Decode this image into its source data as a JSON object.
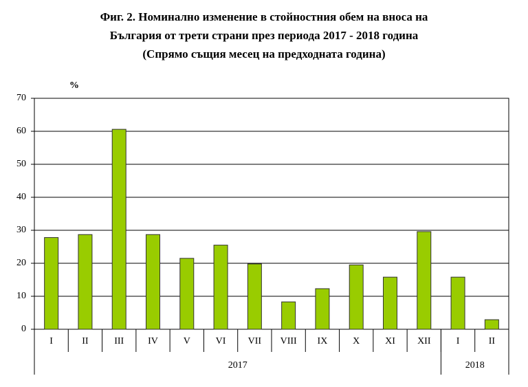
{
  "chart_data": {
    "type": "bar",
    "title": [
      "Фиг. 2. Номинално изменение в стойностния обем на вноса на",
      "България от трети страни през периода 2017 - 2018 година",
      "(Спрямо същия месец на предходната година)"
    ],
    "y_label": "%",
    "categories": [
      "I",
      "II",
      "III",
      "IV",
      "V",
      "VI",
      "VII",
      "VIII",
      "IX",
      "X",
      "XI",
      "XII",
      "I",
      "II"
    ],
    "values": [
      27.8,
      28.7,
      60.6,
      28.7,
      21.5,
      25.5,
      19.8,
      8.3,
      12.3,
      19.5,
      15.8,
      29.6,
      15.8,
      2.9
    ],
    "groups": [
      {
        "name": "2017",
        "size": 12
      },
      {
        "name": "2018",
        "size": 2
      }
    ],
    "color": "#99cc00",
    "ylim": [
      0,
      70
    ],
    "yticks": [
      0,
      10,
      20,
      30,
      40,
      50,
      60,
      70
    ],
    "grid": true
  }
}
